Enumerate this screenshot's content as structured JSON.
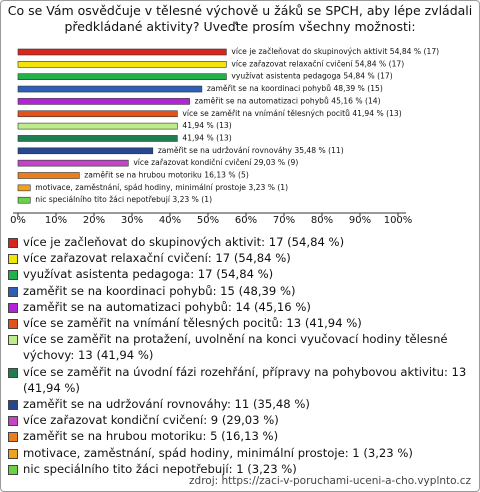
{
  "chart_data": {
    "type": "barh",
    "title": "Co se Vám osvědčuje v tělesné výchově u žáků se SPCH, aby lépe zvládali předkládané aktivity? Uveďte prosím všechny možnosti:",
    "categories": [
      "více je začleňovat do skupinových aktivit",
      "více zařazovat relaxační cvičení",
      "využívat asistenta pedagoga",
      "zaměřit se na koordinaci pohybů",
      "zaměřit se na automatizaci pohybů",
      "více se zaměřit na vnímání tělesných pocitů",
      "více se zaměřit na protažení, uvolnění na konci vyučovací hodiny tělesné výchovy",
      "více se zaměřit na úvodní fázi rozehřání, přípravy na pohybovou aktivitu",
      "zaměřit se na udržování rovnováhy",
      "více zařazovat kondiční cvičení",
      "zaměřit se na hrubou motoriku",
      "motivace, zaměstnání, spád hodiny, minimální prostoje",
      "nic speciálního tito žáci nepotřebují"
    ],
    "values": [
      54.84,
      54.84,
      54.84,
      48.39,
      45.16,
      41.94,
      41.94,
      41.94,
      35.48,
      29.03,
      16.13,
      3.23,
      3.23
    ],
    "value_labels": [
      "více je začleňovat do skupinových aktivit 54,84 % (17)",
      "více zařazovat relaxační cvičení 54,84 % (17)",
      "využívat asistenta pedagoga 54,84 % (17)",
      "zaměřit se na koordinaci pohybů 48,39 % (15)",
      "zaměřit se na automatizaci pohybů 45,16 % (14)",
      "více se zaměřit na vnímání tělesných pocitů 41,94 % (13)",
      "41,94 % (13)",
      "41,94 % (13)",
      "zaměřit se na udržování rovnováhy 35,48 % (11)",
      "více zařazovat kondiční cvičení 29,03 % (9)",
      "zaměřit se na hrubou motoriku 16,13 % (5)",
      "motivace, zaměstnání, spád hodiny, minimální prostoje 3,23 % (1)",
      "nic speciálního tito žáci nepotřebují 3,23 % (1)"
    ],
    "legend_labels": [
      "více je začleňovat do skupinových aktivit: 17 (54,84 %)",
      "více zařazovat relaxační cvičení: 17 (54,84 %)",
      "využívat asistenta pedagoga: 17 (54,84 %)",
      "zaměřit se na koordinaci pohybů: 15 (48,39 %)",
      "zaměřit se na automatizaci pohybů: 14 (45,16 %)",
      "více se zaměřit na vnímání tělesných pocitů: 13 (41,94 %)",
      "více se zaměřit na protažení, uvolnění na konci vyučovací hodiny tělesné výchovy: 13 (41,94 %)",
      "více se zaměřit na úvodní fázi rozehřání, přípravy na pohybovou aktivitu: 13 (41,94 %)",
      "zaměřit se na udržování rovnováhy: 11 (35,48 %)",
      "více zařazovat kondiční cvičení: 9 (29,03 %)",
      "zaměřit se na hrubou motoriku: 5 (16,13 %)",
      "motivace, zaměstnání, spád hodiny, minimální prostoje: 1 (3,23 %)",
      "nic speciálního tito žáci nepotřebují: 1 (3,23 %)"
    ],
    "colors": [
      "#d7261e",
      "#f2e40a",
      "#22b24c",
      "#2e5fb8",
      "#b423d8",
      "#e4521b",
      "#bfec8a",
      "#1f7d50",
      "#27488f",
      "#c245c6",
      "#e87e1c",
      "#f0a21e",
      "#6bd248"
    ],
    "xlim": [
      0,
      100
    ],
    "xticks": [
      {
        "value": 0,
        "label": "0%"
      },
      {
        "value": 10,
        "label": "10%"
      },
      {
        "value": 20,
        "label": "20%"
      },
      {
        "value": 30,
        "label": "30%"
      },
      {
        "value": 40,
        "label": "40%"
      },
      {
        "value": 50,
        "label": "50%"
      },
      {
        "value": 60,
        "label": "60%"
      },
      {
        "value": 70,
        "label": "70%"
      },
      {
        "value": 80,
        "label": "80%"
      },
      {
        "value": 90,
        "label": "90%"
      },
      {
        "value": 100,
        "label": "100%"
      }
    ],
    "source": "zdroj: https://zaci-v-poruchami-uceni-a-cho.vyplnto.cz"
  }
}
